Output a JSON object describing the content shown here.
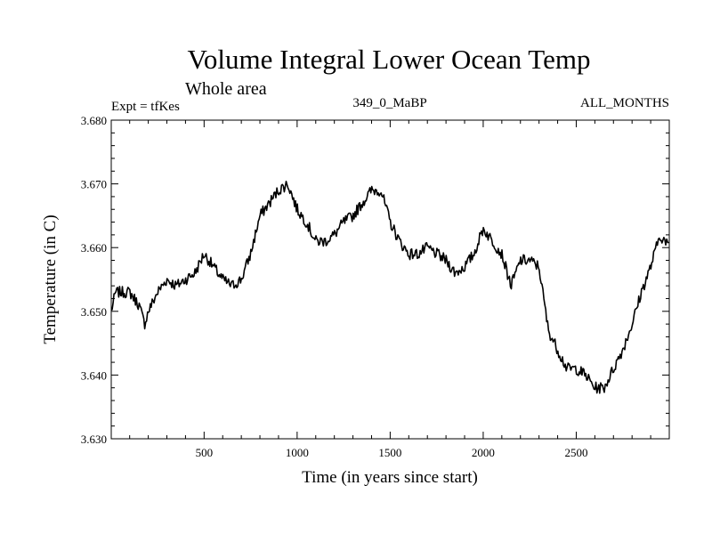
{
  "chart_data": {
    "type": "line",
    "title": "Volume Integral Lower Ocean Temp",
    "subtitle": "Whole area",
    "experiment": "Expt = tfKes",
    "run_label": "349_0_MaBP",
    "months": "ALL_MONTHS",
    "xlabel": "Time (in years since start)",
    "ylabel": "Temperature (in C)",
    "xlim": [
      1,
      3000
    ],
    "ylim": [
      3.63,
      3.68
    ],
    "x_ticks": [
      500,
      1000,
      1500,
      2000,
      2500
    ],
    "x_tick_labels": [
      "500",
      "1000",
      "1500",
      "2000",
      "2500"
    ],
    "y_ticks": [
      3.63,
      3.64,
      3.65,
      3.66,
      3.67,
      3.68
    ],
    "y_tick_labels": [
      "3.630",
      "3.640",
      "3.650",
      "3.660",
      "3.670",
      "3.680"
    ],
    "grid": false,
    "line_color": "#000000",
    "series": [
      {
        "x": [
          1,
          25,
          50,
          100,
          150,
          180,
          200,
          250,
          300,
          350,
          400,
          450,
          500,
          550,
          600,
          650,
          700,
          750,
          800,
          850,
          900,
          950,
          1000,
          1050,
          1100,
          1150,
          1200,
          1250,
          1300,
          1350,
          1400,
          1450,
          1500,
          1550,
          1600,
          1650,
          1700,
          1750,
          1800,
          1850,
          1900,
          1950,
          2000,
          2050,
          2100,
          2150,
          2200,
          2250,
          2300,
          2350,
          2400,
          2450,
          2500,
          2550,
          2600,
          2650,
          2700,
          2750,
          2800,
          2850,
          2900,
          2950,
          3000
        ],
        "y": [
          3.65,
          3.653,
          3.653,
          3.653,
          3.651,
          3.648,
          3.65,
          3.653,
          3.655,
          3.654,
          3.655,
          3.656,
          3.659,
          3.657,
          3.655,
          3.654,
          3.655,
          3.659,
          3.665,
          3.667,
          3.669,
          3.67,
          3.666,
          3.664,
          3.661,
          3.661,
          3.662,
          3.664,
          3.665,
          3.667,
          3.669,
          3.669,
          3.664,
          3.661,
          3.659,
          3.659,
          3.66,
          3.659,
          3.658,
          3.656,
          3.657,
          3.659,
          3.663,
          3.661,
          3.659,
          3.654,
          3.658,
          3.658,
          3.657,
          3.647,
          3.644,
          3.641,
          3.641,
          3.64,
          3.638,
          3.638,
          3.641,
          3.644,
          3.648,
          3.653,
          3.657,
          3.662,
          3.66
        ]
      }
    ]
  }
}
